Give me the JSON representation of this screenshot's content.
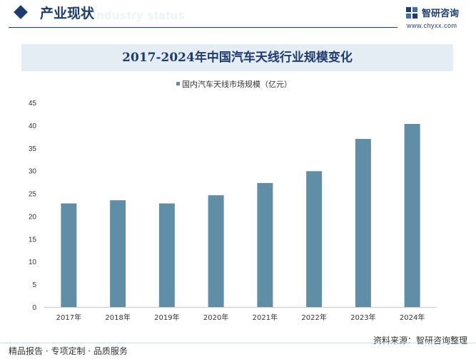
{
  "header": {
    "section_title": "产业现状",
    "ghost_text": "Industry status",
    "logo_name": "智研咨询",
    "logo_url": "www.chyxx.com",
    "accent_color": "#1f3c6e"
  },
  "footer": {
    "left_text": "精品报告 · 专项定制 · 品质服务",
    "right_text": "资料来源：智研咨询整理"
  },
  "chart_data": {
    "type": "bar",
    "title": "2017-2024年中国汽车天线行业规模变化",
    "categories": [
      "2017年",
      "2018年",
      "2019年",
      "2020年",
      "2021年",
      "2022年",
      "2023年",
      "2024年"
    ],
    "series": [
      {
        "name": "国内汽车天线市场规模（亿元）",
        "values": [
          22.8,
          23.5,
          22.8,
          24.6,
          27.3,
          29.9,
          37.0,
          40.3
        ],
        "color": "#608ea6"
      }
    ],
    "ylim": [
      0,
      45
    ],
    "yticks": [
      0,
      5,
      10,
      15,
      20,
      25,
      30,
      35,
      40,
      45
    ],
    "grid": false,
    "legend_position": "top-left"
  }
}
